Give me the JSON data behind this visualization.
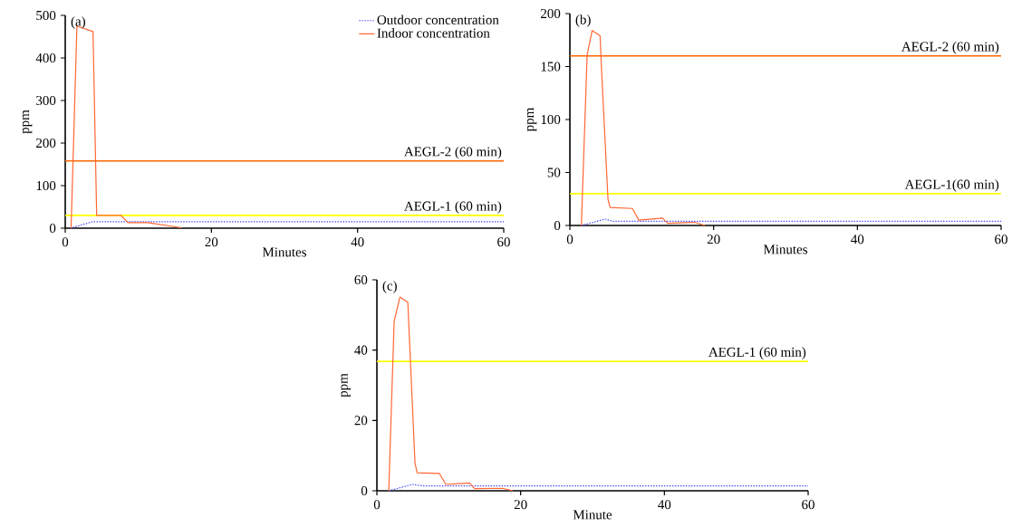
{
  "chart_data": [
    {
      "type": "line",
      "annotations": [
        "(a)"
      ],
      "xlabel": "Minutes",
      "ylabel": "ppm",
      "xlim": [
        0,
        60
      ],
      "ylim": [
        0,
        500
      ],
      "xticks": [
        0,
        20,
        40,
        60
      ],
      "yticks": [
        0,
        100,
        200,
        300,
        400,
        500
      ],
      "legend": "top right",
      "grid": false,
      "series": [
        {
          "name": "Outdoor concentration",
          "color": "#4b4bff",
          "line_style": "dotted",
          "x": [
            0.7,
            3.7,
            60
          ],
          "values": [
            0,
            15,
            15
          ]
        },
        {
          "name": "Indoor concentration",
          "color": "#ff6633",
          "line_style": "solid",
          "x": [
            0.8,
            1.6,
            3.8,
            4.3,
            7.6,
            8.6,
            11.3,
            15.9
          ],
          "values": [
            0,
            475,
            462,
            30,
            30,
            13,
            13,
            1
          ]
        }
      ],
      "ref_lines": [
        {
          "axis": "y",
          "value": 158,
          "label": "AEGL-2 (60 min)",
          "color": "#ff6600"
        },
        {
          "axis": "y",
          "value": 30,
          "label": "AEGL-1 (60 min)",
          "color": "#ffff00"
        }
      ]
    },
    {
      "type": "line",
      "annotations": [
        "(b)"
      ],
      "xlabel": "Minutes",
      "ylabel": "ppm",
      "xlim": [
        0,
        60
      ],
      "ylim": [
        0,
        200
      ],
      "xticks": [
        0,
        20,
        40,
        60
      ],
      "yticks": [
        0,
        50,
        100,
        150,
        200
      ],
      "grid": false,
      "series": [
        {
          "color": "#4b4bff",
          "line_style": "dotted",
          "x": [
            1.6,
            4.9,
            6.0,
            60
          ],
          "values": [
            0,
            6,
            4,
            4
          ]
        },
        {
          "color": "#ff6633",
          "line_style": "solid",
          "x": [
            1.6,
            2.4,
            3.1,
            4.2,
            4.4,
            5.3,
            5.6,
            8.7,
            9.6,
            12.9,
            13.6,
            17.4,
            18.8
          ],
          "values": [
            0,
            161,
            184,
            179,
            148,
            25,
            17,
            16,
            5,
            7,
            2,
            3,
            0
          ]
        }
      ],
      "ref_lines": [
        {
          "axis": "y",
          "value": 160,
          "label": "AEGL-2 (60 min)",
          "color": "#ff6600"
        },
        {
          "axis": "y",
          "value": 30,
          "label": "AEGL-1(60 min)",
          "color": "#ffff00"
        }
      ]
    },
    {
      "type": "line",
      "annotations": [
        "(c)"
      ],
      "xlabel": "Minute",
      "ylabel": "ppm",
      "xlim": [
        0,
        60
      ],
      "ylim": [
        0,
        60
      ],
      "xticks": [
        0,
        20,
        40,
        60
      ],
      "yticks": [
        0,
        20,
        40,
        60
      ],
      "grid": false,
      "series": [
        {
          "color": "#4b4bff",
          "line_style": "dotted",
          "x": [
            1.65,
            4.9,
            6.4,
            60
          ],
          "values": [
            0,
            1.8,
            1.4,
            1.4
          ]
        },
        {
          "color": "#ff6633",
          "line_style": "solid",
          "x": [
            1.65,
            2.4,
            3.2,
            4.3,
            5.3,
            5.6,
            8.7,
            9.6,
            12.9,
            13.6,
            17.5,
            18.9
          ],
          "values": [
            0,
            48.2,
            55.1,
            53.6,
            7.8,
            5.1,
            4.9,
            1.8,
            2.2,
            0.6,
            0.7,
            0
          ]
        }
      ],
      "ref_lines": [
        {
          "axis": "y",
          "value": 36.8,
          "label": "AEGL-1 (60 min)",
          "color": "#ffff00"
        }
      ]
    }
  ]
}
